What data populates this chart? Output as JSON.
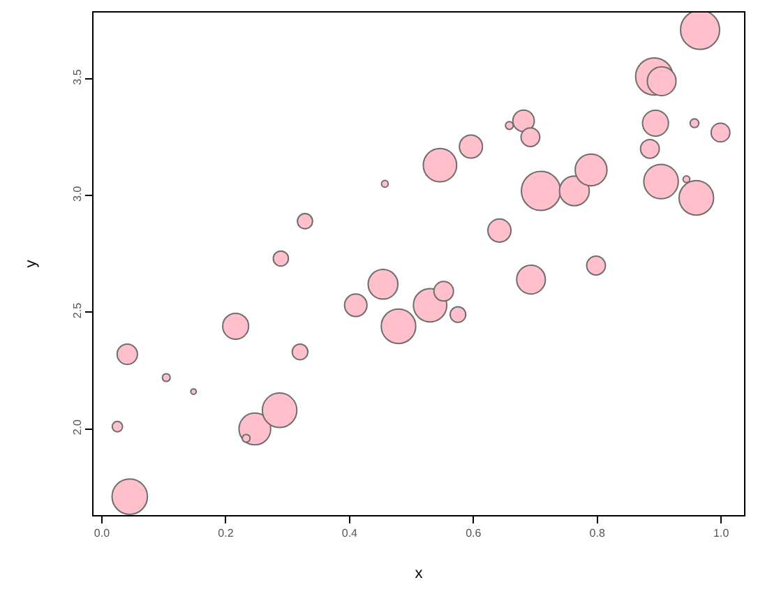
{
  "chart_data": {
    "type": "bubble",
    "xlabel": "x",
    "ylabel": "y",
    "x": [
      0.045,
      0.041,
      0.025,
      0.104,
      0.148,
      0.216,
      0.247,
      0.233,
      0.287,
      0.289,
      0.328,
      0.32,
      0.457,
      0.41,
      0.454,
      0.479,
      0.53,
      0.552,
      0.575,
      0.546,
      0.596,
      0.642,
      0.658,
      0.681,
      0.692,
      0.693,
      0.709,
      0.763,
      0.79,
      0.798,
      0.892,
      0.904,
      0.894,
      0.885,
      0.903,
      0.944,
      0.96,
      0.957,
      0.999,
      0.966
    ],
    "values": [
      1.71,
      2.32,
      2.01,
      2.22,
      2.16,
      2.44,
      2.0,
      1.96,
      2.08,
      2.73,
      2.89,
      2.33,
      3.05,
      2.53,
      2.62,
      2.44,
      2.53,
      2.59,
      2.49,
      3.13,
      3.21,
      2.85,
      3.3,
      3.32,
      3.25,
      2.64,
      3.02,
      3.02,
      3.11,
      2.7,
      3.51,
      3.49,
      3.31,
      3.2,
      3.06,
      3.07,
      2.99,
      3.31,
      3.27,
      3.71
    ],
    "sizes": [
      0.82,
      0.27,
      0.07,
      0.04,
      0.02,
      0.44,
      0.66,
      0.04,
      0.78,
      0.15,
      0.15,
      0.16,
      0.03,
      0.33,
      0.58,
      0.78,
      0.73,
      0.25,
      0.16,
      0.73,
      0.35,
      0.35,
      0.04,
      0.3,
      0.23,
      0.54,
      1,
      0.58,
      0.66,
      0.23,
      0.91,
      0.54,
      0.44,
      0.23,
      0.78,
      0.03,
      0.78,
      0.05,
      0.23,
      1
    ],
    "color": "#ffc0cb",
    "xlim": [
      -0.0135,
      1.037
    ],
    "ylim": [
      1.631,
      3.784
    ],
    "xticks": [
      {
        "value": 0,
        "label": "0.0"
      },
      0.2,
      0.4,
      0.6,
      0.8,
      {
        "value": 1,
        "label": "1.0"
      }
    ],
    "yticks": [
      {
        "value": 2,
        "label": "2.0"
      },
      2.5,
      {
        "value": 3,
        "label": "3.0"
      },
      3.5
    ],
    "grid": false
  }
}
